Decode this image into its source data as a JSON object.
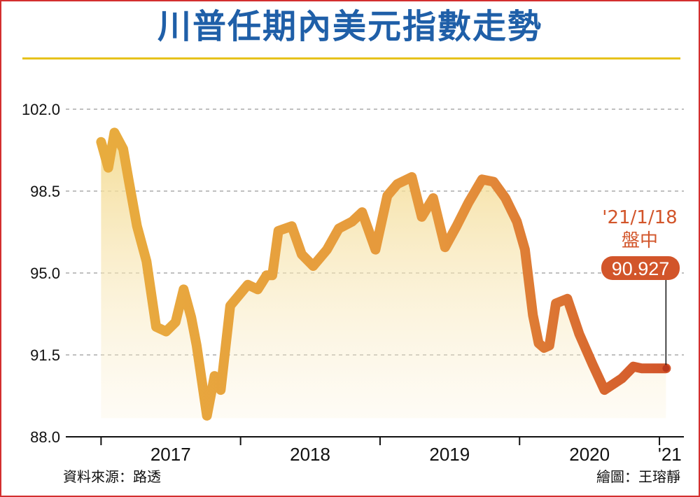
{
  "title": "川普任期內美元指數走勢",
  "source": "資料來源：路透",
  "credit": "繪圖：王瑢靜",
  "colors": {
    "title": "#1f5fa8",
    "rule": "#e6c21c",
    "line_start": "#e8ac3e",
    "line_end": "#d2552a",
    "border": "#d32f2f"
  },
  "chart_data": {
    "type": "line",
    "title": "川普任期內美元指數走勢",
    "xlabel": "",
    "ylabel": "",
    "ylim": [
      88.0,
      102.0
    ],
    "yticks": [
      "102.0",
      "98.5",
      "95.0",
      "91.5",
      "88.0"
    ],
    "xticks": [
      "2017",
      "2018",
      "2019",
      "2020",
      "'21"
    ],
    "grid": true,
    "series": [
      {
        "x": [
          "2017-01-01",
          "2017-01-20",
          "2017-02-05",
          "2017-02-28",
          "2017-03-15",
          "2017-04-05",
          "2017-04-30",
          "2017-05-25",
          "2017-06-20",
          "2017-07-15",
          "2017-08-05",
          "2017-08-25",
          "2017-09-08",
          "2017-10-05",
          "2017-10-25",
          "2017-11-10",
          "2017-12-05",
          "2018-01-20",
          "2018-02-15",
          "2018-03-10",
          "2018-03-25",
          "2018-04-10",
          "2018-05-15",
          "2018-06-10",
          "2018-07-10",
          "2018-08-15",
          "2018-09-15",
          "2018-10-20",
          "2018-11-15",
          "2018-12-20",
          "2019-01-20",
          "2019-02-15",
          "2019-03-25",
          "2019-04-20",
          "2019-05-20",
          "2019-06-20",
          "2019-07-20",
          "2019-08-20",
          "2019-09-25",
          "2019-10-25",
          "2019-11-25",
          "2019-12-25",
          "2020-01-15",
          "2020-02-05",
          "2020-02-20",
          "2020-03-05",
          "2020-03-19",
          "2020-04-05",
          "2020-05-05",
          "2020-06-05",
          "2020-07-10",
          "2020-08-10",
          "2020-09-25",
          "2020-10-25",
          "2020-11-15",
          "2020-12-20",
          "2021-01-18"
        ],
        "values": [
          100.6,
          99.5,
          101.0,
          100.3,
          98.9,
          97.0,
          95.5,
          92.7,
          92.5,
          92.9,
          94.3,
          93.1,
          91.9,
          88.9,
          90.6,
          90.0,
          93.6,
          94.5,
          94.3,
          94.9,
          94.9,
          96.8,
          97.0,
          95.8,
          95.3,
          96.0,
          96.9,
          97.2,
          97.6,
          96.0,
          98.3,
          98.8,
          99.1,
          97.4,
          98.2,
          96.1,
          97.0,
          98.0,
          99.0,
          98.9,
          98.2,
          97.2,
          96.0,
          93.2,
          92.0,
          91.8,
          91.9,
          93.7,
          93.9,
          92.4,
          91.1,
          90.0,
          90.5,
          91.0,
          90.927,
          90.927,
          90.927
        ]
      }
    ],
    "annotation": {
      "date_label": "'21/1/18",
      "session_label": "盤中",
      "value_label": "90.927",
      "value": 90.927
    }
  }
}
